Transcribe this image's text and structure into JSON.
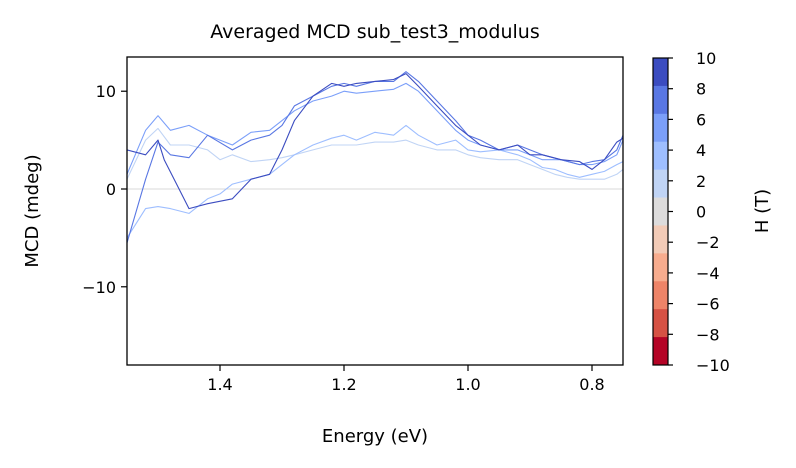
{
  "chart_data": {
    "type": "line",
    "title": "Averaged MCD sub_test3_modulus",
    "xlabel": "Energy (eV)",
    "ylabel": "MCD (mdeg)",
    "xlim": [
      1.55,
      0.75
    ],
    "ylim": [
      -18,
      13.5
    ],
    "x_axis_inverted": true,
    "xticks": [
      1.4,
      1.2,
      1.0,
      0.8
    ],
    "xtick_labels": [
      "1.4",
      "1.2",
      "1.0",
      "0.8"
    ],
    "yticks": [
      10,
      0,
      -10
    ],
    "ytick_labels": [
      "10",
      "0",
      "−10"
    ],
    "zero_line": true,
    "grid": false,
    "colorbar": {
      "label": "H (T)",
      "ticks": [
        10,
        8,
        6,
        4,
        2,
        0,
        -2,
        -4,
        -6,
        -8,
        -10
      ],
      "tick_labels": [
        "10",
        "8",
        "6",
        "4",
        "2",
        "0",
        "−2",
        "−4",
        "−6",
        "−8",
        "−10"
      ],
      "colors": [
        "#3b4cc0",
        "#5977e3",
        "#7b9ff9",
        "#9ebeff",
        "#c0d4f5",
        "#dddcdc",
        "#f2cbb7",
        "#f7ac8e",
        "#ee8468",
        "#d65244",
        "#b40426"
      ]
    },
    "series": [
      {
        "color": "#3b4cc0",
        "x": [
          1.55,
          1.52,
          1.5,
          1.49,
          1.47,
          1.45,
          1.42,
          1.38,
          1.35,
          1.32,
          1.3,
          1.28,
          1.25,
          1.22,
          1.2,
          1.18,
          1.15,
          1.12,
          1.1,
          1.08,
          1.05,
          1.02,
          1.0,
          0.98,
          0.95,
          0.92,
          0.9,
          0.88,
          0.85,
          0.82,
          0.8,
          0.78,
          0.76,
          0.75
        ],
        "y": [
          4.0,
          3.5,
          5.0,
          3.0,
          0.5,
          -2.0,
          -1.5,
          -1.0,
          1.0,
          1.5,
          4.0,
          7.0,
          9.5,
          10.8,
          10.5,
          10.8,
          11.0,
          11.2,
          11.8,
          10.5,
          8.5,
          6.5,
          5.5,
          4.5,
          4.0,
          4.5,
          3.5,
          3.5,
          3.0,
          2.8,
          2.0,
          3.0,
          4.8,
          5.2
        ]
      },
      {
        "color": "#5977e3",
        "x": [
          1.55,
          1.52,
          1.5,
          1.48,
          1.45,
          1.42,
          1.38,
          1.35,
          1.32,
          1.3,
          1.28,
          1.25,
          1.22,
          1.2,
          1.18,
          1.15,
          1.12,
          1.1,
          1.08,
          1.05,
          1.02,
          1.0,
          0.98,
          0.95,
          0.92,
          0.9,
          0.88,
          0.85,
          0.82,
          0.8,
          0.78,
          0.76,
          0.75
        ],
        "y": [
          -5.5,
          1.0,
          4.8,
          3.5,
          3.2,
          5.5,
          4.0,
          5.0,
          5.5,
          6.5,
          8.5,
          9.5,
          10.5,
          10.8,
          10.5,
          11.0,
          11.0,
          12.0,
          11.0,
          9.0,
          7.0,
          5.5,
          5.0,
          4.0,
          4.5,
          4.0,
          3.5,
          3.0,
          2.5,
          2.8,
          3.0,
          4.0,
          5.5
        ]
      },
      {
        "color": "#7b9ff9",
        "x": [
          1.55,
          1.52,
          1.5,
          1.48,
          1.45,
          1.42,
          1.38,
          1.35,
          1.32,
          1.3,
          1.28,
          1.25,
          1.22,
          1.2,
          1.18,
          1.15,
          1.12,
          1.1,
          1.08,
          1.05,
          1.02,
          1.0,
          0.98,
          0.95,
          0.92,
          0.9,
          0.88,
          0.85,
          0.82,
          0.8,
          0.78,
          0.76,
          0.75
        ],
        "y": [
          1.5,
          6.0,
          7.5,
          6.0,
          6.5,
          5.5,
          4.5,
          5.8,
          6.0,
          7.0,
          8.0,
          9.0,
          9.5,
          10.0,
          9.8,
          10.0,
          10.2,
          10.8,
          10.0,
          8.0,
          6.0,
          5.0,
          4.5,
          4.0,
          4.0,
          3.5,
          3.0,
          3.0,
          2.5,
          2.5,
          2.8,
          3.5,
          5.0
        ]
      },
      {
        "color": "#9ebeff",
        "x": [
          1.55,
          1.52,
          1.5,
          1.48,
          1.45,
          1.42,
          1.4,
          1.38,
          1.35,
          1.32,
          1.3,
          1.28,
          1.25,
          1.22,
          1.2,
          1.18,
          1.15,
          1.12,
          1.1,
          1.08,
          1.05,
          1.02,
          1.0,
          0.98,
          0.95,
          0.92,
          0.9,
          0.88,
          0.86,
          0.84,
          0.82,
          0.8,
          0.78,
          0.76,
          0.75
        ],
        "y": [
          -5.0,
          -2.0,
          -1.8,
          -2.0,
          -2.5,
          -1.0,
          -0.5,
          0.5,
          1.0,
          1.5,
          2.5,
          3.5,
          4.5,
          5.2,
          5.5,
          5.0,
          5.8,
          5.5,
          6.5,
          5.5,
          4.5,
          5.0,
          4.0,
          3.8,
          4.0,
          3.5,
          3.0,
          2.2,
          2.0,
          1.5,
          1.2,
          1.5,
          1.8,
          2.5,
          2.8
        ]
      },
      {
        "color": "#c0d4f5",
        "x": [
          1.55,
          1.52,
          1.5,
          1.48,
          1.45,
          1.42,
          1.4,
          1.38,
          1.35,
          1.32,
          1.3,
          1.28,
          1.25,
          1.22,
          1.2,
          1.18,
          1.15,
          1.12,
          1.1,
          1.08,
          1.05,
          1.02,
          1.0,
          0.98,
          0.95,
          0.92,
          0.9,
          0.88,
          0.86,
          0.84,
          0.82,
          0.8,
          0.78,
          0.76,
          0.75
        ],
        "y": [
          1.0,
          5.0,
          6.2,
          4.5,
          4.5,
          4.0,
          3.0,
          3.5,
          2.8,
          3.0,
          3.2,
          3.5,
          4.0,
          4.5,
          4.5,
          4.5,
          4.8,
          4.8,
          5.0,
          4.5,
          4.0,
          4.0,
          3.5,
          3.2,
          3.0,
          3.0,
          2.5,
          2.0,
          1.5,
          1.2,
          1.0,
          1.0,
          1.0,
          1.5,
          2.0
        ]
      }
    ]
  }
}
